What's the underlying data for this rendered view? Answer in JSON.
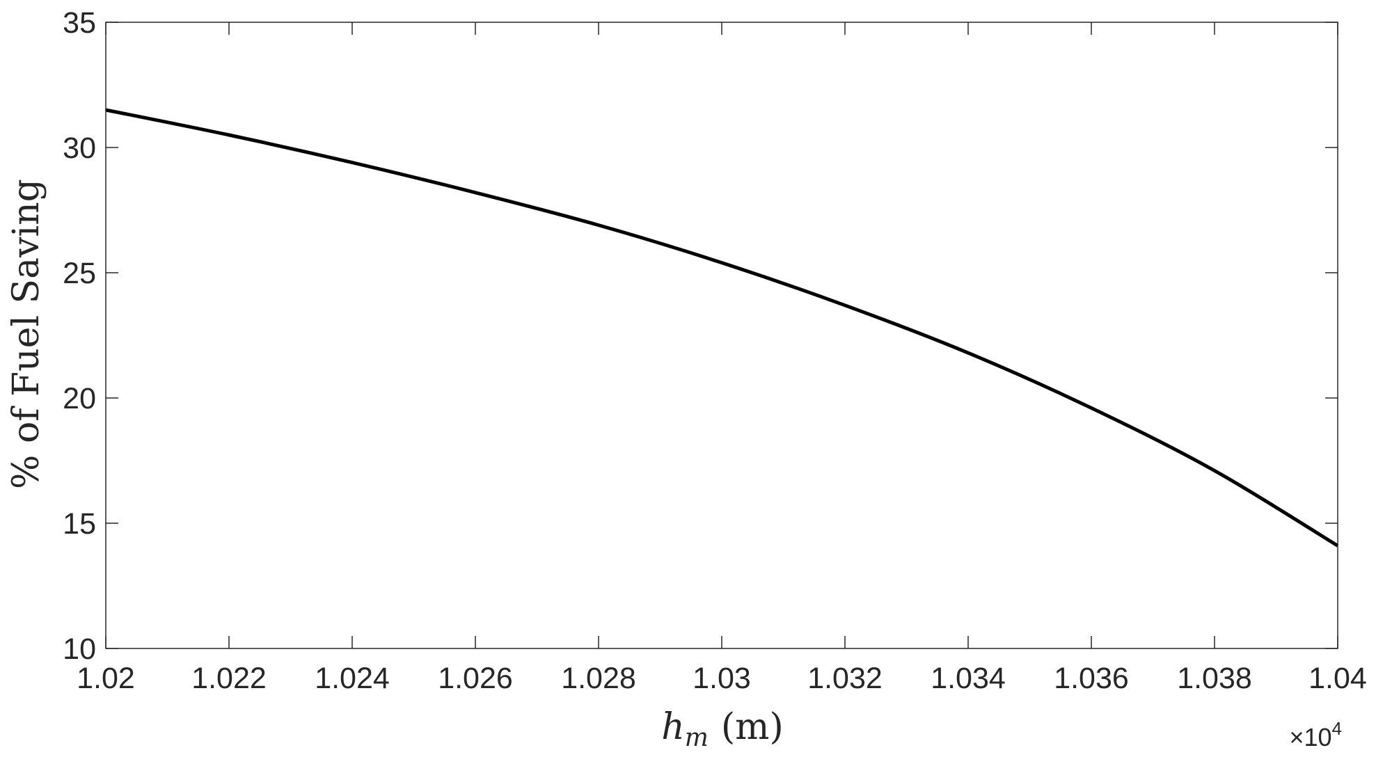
{
  "chart_data": {
    "type": "line",
    "xlabel_main": "h",
    "xlabel_sub": "m",
    "xlabel_unit": "(m)",
    "ylabel": "% of Fuel Saving",
    "x_multiplier_base": "×10",
    "x_multiplier_exp": "4",
    "xlim": [
      1.02,
      1.04
    ],
    "ylim": [
      10,
      35
    ],
    "xticks": [
      1.02,
      1.022,
      1.024,
      1.026,
      1.028,
      1.03,
      1.032,
      1.034,
      1.036,
      1.038,
      1.04
    ],
    "xtick_labels": [
      "1.02",
      "1.022",
      "1.024",
      "1.026",
      "1.028",
      "1.03",
      "1.032",
      "1.034",
      "1.036",
      "1.038",
      "1.04"
    ],
    "yticks": [
      10,
      15,
      20,
      25,
      30,
      35
    ],
    "ytick_labels": [
      "10",
      "15",
      "20",
      "25",
      "30",
      "35"
    ],
    "grid": false,
    "series": [
      {
        "color": "#000000",
        "x": [
          1.02,
          1.022,
          1.024,
          1.026,
          1.028,
          1.03,
          1.032,
          1.034,
          1.036,
          1.038,
          1.04
        ],
        "y": [
          31.5,
          30.5,
          29.4,
          28.2,
          26.9,
          25.4,
          23.7,
          21.8,
          19.6,
          17.1,
          14.1
        ]
      }
    ]
  }
}
